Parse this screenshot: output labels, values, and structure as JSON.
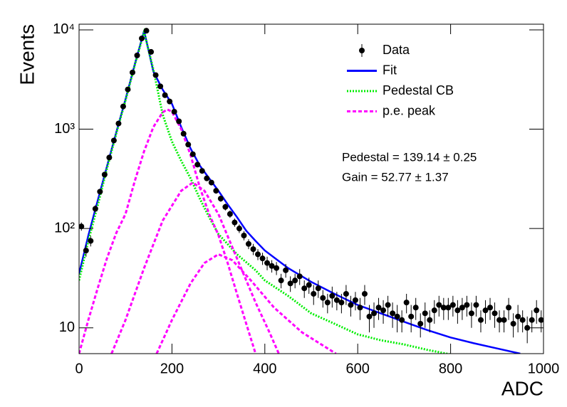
{
  "chart_data": {
    "type": "scatter",
    "log_y": true,
    "data_label": "Data",
    "data_color": "#000000",
    "x": [
      5,
      15,
      25,
      35,
      45,
      55,
      65,
      75,
      85,
      95,
      105,
      115,
      125,
      135,
      145,
      155,
      165,
      175,
      185,
      195,
      205,
      215,
      225,
      235,
      245,
      255,
      265,
      275,
      285,
      295,
      305,
      315,
      325,
      335,
      345,
      355,
      365,
      375,
      385,
      395,
      405,
      415,
      425,
      435,
      445,
      455,
      465,
      475,
      485,
      495,
      505,
      515,
      525,
      535,
      545,
      555,
      565,
      575,
      585,
      595,
      605,
      615,
      625,
      635,
      645,
      655,
      665,
      675,
      685,
      695,
      705,
      715,
      725,
      735,
      745,
      755,
      765,
      775,
      785,
      795,
      805,
      815,
      825,
      835,
      845,
      855,
      865,
      875,
      885,
      895,
      905,
      915,
      925,
      935,
      945,
      955,
      965,
      975,
      985,
      995
    ],
    "values": [
      105,
      60,
      75,
      158,
      235,
      349,
      518,
      769,
      1140,
      1694,
      2512,
      3725,
      5530,
      8200,
      9800,
      6000,
      3500,
      2700,
      2200,
      1900,
      1500,
      1200,
      900,
      700,
      560,
      440,
      380,
      320,
      290,
      240,
      200,
      165,
      140,
      115,
      100,
      85,
      70,
      62,
      55,
      50,
      45,
      42,
      40,
      30,
      38,
      28,
      30,
      33,
      25,
      27,
      22,
      25,
      20,
      18,
      21,
      19,
      18,
      22,
      17,
      19,
      16,
      22,
      13,
      14,
      16,
      15,
      17,
      14,
      13,
      12,
      18,
      13,
      16,
      11,
      14,
      12,
      15,
      17,
      16,
      16,
      17,
      15,
      16,
      17,
      14,
      17,
      12,
      15,
      16,
      14,
      12,
      12,
      16,
      11,
      13,
      12,
      10,
      12,
      15,
      12
    ],
    "errors": [
      10,
      8,
      9,
      13,
      15,
      19,
      23,
      28,
      34,
      41,
      50,
      61,
      74,
      91,
      99,
      77,
      59,
      52,
      47,
      44,
      39,
      35,
      30,
      26,
      24,
      21,
      19,
      18,
      17,
      15,
      14,
      13,
      12,
      11,
      10,
      9,
      8,
      8,
      7,
      7,
      7,
      6,
      6,
      5,
      6,
      5,
      5,
      6,
      5,
      5,
      5,
      5,
      4,
      4,
      5,
      4,
      4,
      5,
      4,
      4,
      4,
      5,
      4,
      4,
      4,
      4,
      4,
      4,
      4,
      3,
      4,
      4,
      4,
      3,
      4,
      3,
      4,
      4,
      4,
      4,
      4,
      4,
      4,
      4,
      4,
      4,
      3,
      4,
      4,
      4,
      3,
      3,
      4,
      3,
      4,
      3,
      3,
      3,
      4,
      3
    ],
    "series": [
      {
        "name": "Fit",
        "color": "#0000ff",
        "style": "solid",
        "x": [
          0,
          20,
          40,
          60,
          80,
          100,
          120,
          140,
          160,
          180,
          200,
          220,
          240,
          260,
          280,
          300,
          320,
          340,
          360,
          380,
          400,
          450,
          500,
          550,
          600,
          650,
          700,
          750,
          800,
          850,
          900,
          950
        ],
        "values": [
          35,
          85,
          190,
          420,
          930,
          2000,
          4500,
          9800,
          3800,
          2500,
          1800,
          1050,
          640,
          430,
          320,
          240,
          175,
          130,
          95,
          75,
          60,
          40,
          29,
          22,
          17,
          14,
          11.5,
          9.5,
          8,
          7,
          6.2,
          5.5
        ]
      },
      {
        "name": "Pedestal CB",
        "color": "#00ee00",
        "style": "dotted",
        "x": [
          0,
          20,
          40,
          60,
          80,
          100,
          120,
          140,
          160,
          180,
          200,
          220,
          240,
          260,
          280,
          300,
          340,
          380,
          400,
          450,
          500,
          550,
          600,
          650,
          700,
          750,
          800
        ],
        "values": [
          30,
          75,
          170,
          400,
          900,
          1950,
          4400,
          9500,
          4000,
          1400,
          750,
          480,
          320,
          200,
          130,
          88,
          55,
          38,
          30,
          21,
          14,
          11,
          8.6,
          7.5,
          6.8,
          6,
          5.4
        ]
      },
      {
        "name": "p.e. peak",
        "color": "#ff00ff",
        "style": "dashed",
        "curves": [
          {
            "x": [
              0,
              20,
              40,
              60,
              80,
              100,
              120,
              140,
              160,
              180,
              190,
              200,
              220,
              240,
              260,
              280,
              300,
              320,
              340,
              360,
              380
            ],
            "values": [
              5.5,
              12,
              25,
              50,
              90,
              140,
              300,
              600,
              1050,
              1480,
              1580,
              1500,
              1000,
              550,
              260,
              140,
              86,
              45,
              22,
              11,
              5.5
            ]
          },
          {
            "x": [
              70,
              100,
              140,
              180,
              220,
              245,
              270,
              300,
              340,
              380,
              410,
              430
            ],
            "values": [
              5.5,
              12,
              40,
              120,
              240,
              290,
              240,
              140,
              50,
              18,
              9,
              5.5
            ]
          },
          {
            "x": [
              167,
              200,
              240,
              270,
              300,
              330,
              370,
              420,
              480,
              553
            ],
            "values": [
              5.5,
              12,
              28,
              45,
              55,
              48,
              30,
              16,
              9,
              5.5
            ]
          }
        ]
      }
    ],
    "xlabel": "ADC",
    "ylabel": "Events",
    "xlim": [
      0,
      1000
    ],
    "ylim": [
      5.5,
      11400
    ],
    "xticks": [
      0,
      200,
      400,
      600,
      800,
      1000
    ],
    "yticks": [
      10,
      {
        "value": 100,
        "label": "10²"
      },
      {
        "value": 1000,
        "label": "10³"
      },
      {
        "value": 10000,
        "label": "10⁴"
      }
    ],
    "annotations": [
      "Pedestal = 139.14 ± 0.25",
      "Gain = 52.77 ± 1.37"
    ]
  }
}
